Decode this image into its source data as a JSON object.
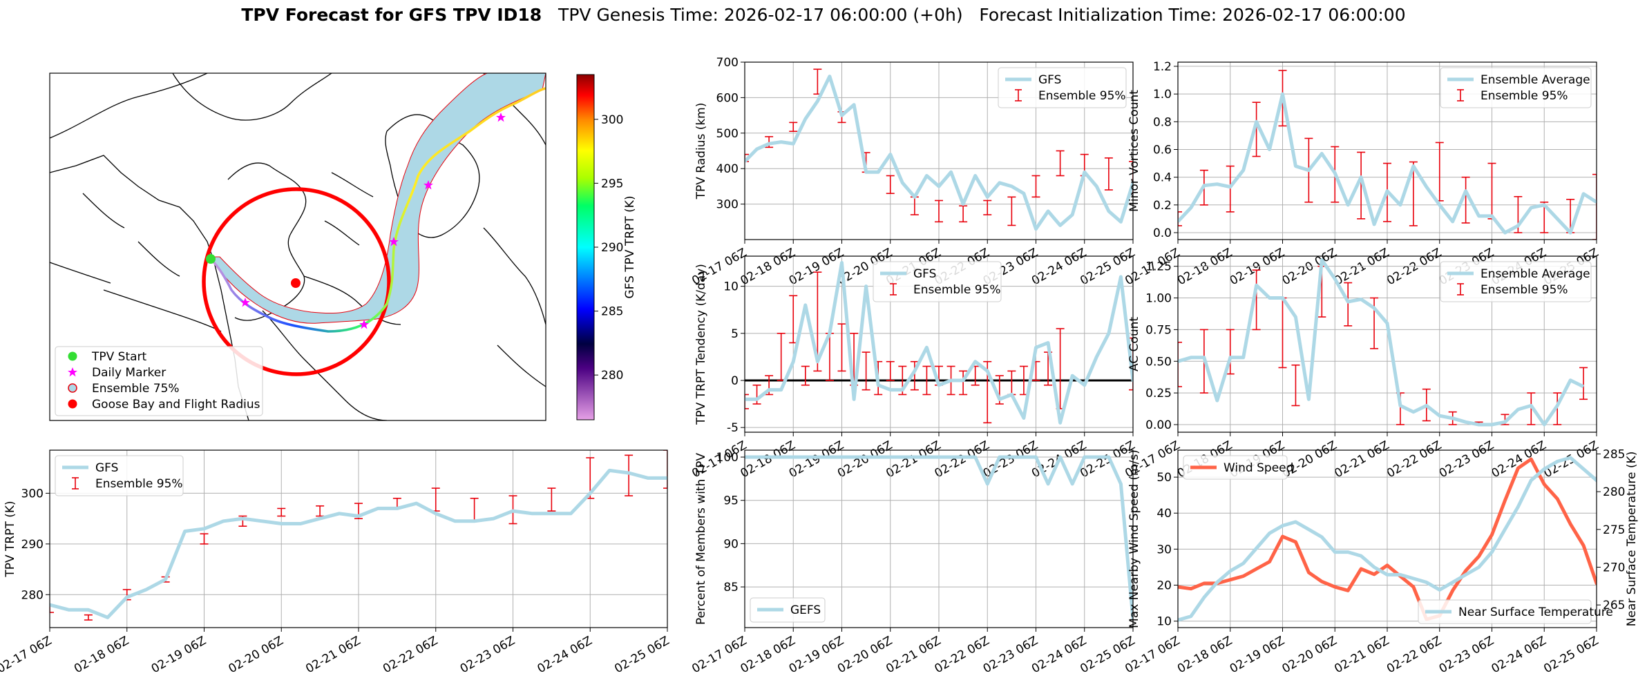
{
  "figure": {
    "title_bold": "TPV Forecast for GFS TPV ID18",
    "title_rest": "   TPV Genesis Time: 2026-02-17 06:00:00 (+0h)   Forecast Initialization Time: 2026-02-17 06:00:00"
  },
  "colors": {
    "line": "#add8e6",
    "err": "#e8000b",
    "wind": "#ff6347",
    "temp_axis": "#4169e1",
    "ensemble_fill": "#add8e6",
    "ensemble_edge": "#e8000b",
    "ring": "#ff0000"
  },
  "map": {
    "colorbar_label": "GFS TPV TRPT (K)",
    "colorbar_ticks": [
      "280",
      "285",
      "290",
      "295",
      "300"
    ],
    "colorbar_range": [
      276.5,
      303.5
    ],
    "legend": [
      "TPV Start",
      "Daily Marker",
      "Ensemble 75%",
      "Goose Bay and Flight Radius"
    ]
  },
  "chart_data": [
    {
      "id": "radius",
      "type": "line",
      "title": "",
      "xlabel": "",
      "ylabel": "TPV Radius (km)",
      "x_ticks": [
        "02-17 06Z",
        "02-18 06Z",
        "02-19 06Z",
        "02-20 06Z",
        "02-21 06Z",
        "02-22 06Z",
        "02-23 06Z",
        "02-24 06Z",
        "02-25 06Z"
      ],
      "xlim": [
        0,
        32
      ],
      "ylim": [
        200,
        700
      ],
      "y_ticks": [
        300,
        400,
        500,
        600,
        700
      ],
      "legend": [
        "GFS",
        "Ensemble 95%"
      ],
      "legend_loc": "upper right",
      "series": [
        {
          "name": "GFS",
          "values": [
            420,
            455,
            470,
            475,
            470,
            540,
            590,
            660,
            550,
            580,
            390,
            390,
            440,
            360,
            320,
            380,
            350,
            390,
            300,
            380,
            320,
            360,
            350,
            330,
            230,
            280,
            240,
            270,
            390,
            350,
            280,
            250,
            360,
            350
          ]
        }
      ],
      "errorbars": [
        [
          0,
          420,
          440
        ],
        [
          2,
          460,
          490
        ],
        [
          4,
          505,
          530
        ],
        [
          6,
          610,
          680
        ],
        [
          8,
          530,
          560
        ],
        [
          10,
          390,
          445
        ],
        [
          12,
          330,
          380
        ],
        [
          14,
          270,
          320
        ],
        [
          16,
          250,
          310
        ],
        [
          18,
          250,
          295
        ],
        [
          20,
          270,
          310
        ],
        [
          22,
          240,
          320
        ],
        [
          24,
          320,
          380
        ],
        [
          26,
          380,
          450
        ],
        [
          28,
          380,
          440
        ],
        [
          30,
          340,
          430
        ],
        [
          32,
          330,
          420
        ],
        [
          34,
          340,
          410
        ]
      ]
    },
    {
      "id": "minor",
      "type": "line",
      "ylabel": "Minor Vortices Count",
      "x_ticks": [
        "02-17 06Z",
        "02-18 06Z",
        "02-19 06Z",
        "02-20 06Z",
        "02-21 06Z",
        "02-22 06Z",
        "02-23 06Z",
        "02-24 06Z",
        "02-25 06Z"
      ],
      "xlim": [
        0,
        32
      ],
      "ylim": [
        -0.05,
        1.23
      ],
      "y_ticks": [
        0.0,
        0.2,
        0.4,
        0.6,
        0.8,
        1.0,
        1.2
      ],
      "legend": [
        "Ensemble Average",
        "Ensemble 95%"
      ],
      "legend_loc": "upper right",
      "series": [
        {
          "name": "Ensemble Average",
          "values": [
            0.08,
            0.18,
            0.34,
            0.35,
            0.33,
            0.45,
            0.8,
            0.6,
            1.0,
            0.48,
            0.45,
            0.57,
            0.43,
            0.2,
            0.4,
            0.06,
            0.3,
            0.2,
            0.48,
            0.33,
            0.2,
            0.08,
            0.3,
            0.12,
            0.12,
            0.0,
            0.05,
            0.18,
            0.2,
            0.1,
            0.0,
            0.28,
            0.22
          ]
        }
      ],
      "errorbars": [
        [
          0,
          0.05,
          0.15
        ],
        [
          2,
          0.2,
          0.45
        ],
        [
          4,
          0.15,
          0.48
        ],
        [
          6,
          0.55,
          0.94
        ],
        [
          8,
          0.77,
          1.17
        ],
        [
          10,
          0.22,
          0.68
        ],
        [
          12,
          0.22,
          0.62
        ],
        [
          14,
          0.1,
          0.58
        ],
        [
          16,
          0.08,
          0.5
        ],
        [
          18,
          0.05,
          0.51
        ],
        [
          20,
          0.23,
          0.65
        ],
        [
          22,
          0.07,
          0.4
        ],
        [
          24,
          0.1,
          0.5
        ],
        [
          26,
          0.0,
          0.26
        ],
        [
          28,
          0.0,
          0.22
        ],
        [
          30,
          0.0,
          0.24
        ],
        [
          32,
          -0.05,
          0.42
        ]
      ]
    },
    {
      "id": "tendency",
      "type": "line",
      "ylabel": "TPV TRPT Tendency (K/day)",
      "x_ticks": [
        "02-17 06Z",
        "02-18 06Z",
        "02-19 06Z",
        "02-20 06Z",
        "02-21 06Z",
        "02-22 06Z",
        "02-23 06Z",
        "02-24 06Z",
        "02-25 06Z"
      ],
      "xlim": [
        0,
        32
      ],
      "ylim": [
        -5.5,
        13.2
      ],
      "y_ticks": [
        -5,
        0,
        5,
        10
      ],
      "legend": [
        "GFS",
        "Ensemble 95%"
      ],
      "legend_loc": "upper center",
      "zero_line": true,
      "series": [
        {
          "name": "GFS",
          "values": [
            -2,
            -2,
            -1,
            -1,
            2,
            8,
            2,
            5,
            12.5,
            -2,
            10,
            -0.5,
            -1,
            -1,
            1,
            3.5,
            -0.5,
            0,
            0,
            2,
            1,
            -2,
            -1.5,
            -4,
            3.5,
            4,
            -4.5,
            0.5,
            -0.5,
            2.5,
            5,
            11,
            0,
            -0.5,
            -1
          ]
        }
      ],
      "errorbars": [
        [
          0,
          -3,
          -1.5
        ],
        [
          1,
          -2.5,
          -0.5
        ],
        [
          2,
          -1.5,
          0.5
        ],
        [
          3,
          0,
          5
        ],
        [
          4,
          4,
          9
        ],
        [
          5,
          -0.5,
          1.5
        ],
        [
          6,
          1,
          11.5
        ],
        [
          7,
          0,
          5
        ],
        [
          8,
          1,
          6
        ],
        [
          9,
          -0.5,
          5
        ],
        [
          10,
          -1,
          3
        ],
        [
          11,
          -1.5,
          2
        ],
        [
          12,
          0,
          2
        ],
        [
          13,
          -1.5,
          1.5
        ],
        [
          14,
          -1,
          2
        ],
        [
          15,
          -1.5,
          1.5
        ],
        [
          16,
          -0.5,
          1.5
        ],
        [
          17,
          -1.5,
          1.5
        ],
        [
          18,
          -1.5,
          1
        ],
        [
          19,
          -0.5,
          1.5
        ],
        [
          20,
          -4.5,
          2
        ],
        [
          21,
          -2.5,
          0.5
        ],
        [
          22,
          -1.5,
          1
        ],
        [
          23,
          -1.5,
          1.5
        ],
        [
          24,
          0,
          2
        ],
        [
          25,
          -0.5,
          3
        ],
        [
          26,
          -3,
          5.5
        ],
        [
          32,
          -1,
          4.5
        ]
      ]
    },
    {
      "id": "ac",
      "type": "line",
      "ylabel": "AC Count",
      "x_ticks": [
        "02-17 06Z",
        "02-18 06Z",
        "02-19 06Z",
        "02-20 06Z",
        "02-21 06Z",
        "02-22 06Z",
        "02-23 06Z",
        "02-24 06Z",
        "02-25 06Z"
      ],
      "xlim": [
        0,
        32
      ],
      "ylim": [
        -0.06,
        1.33
      ],
      "y_ticks": [
        0.0,
        0.25,
        0.5,
        0.75,
        1.0,
        1.25
      ],
      "legend": [
        "Ensemble Average",
        "Ensemble 95%"
      ],
      "legend_loc": "upper right",
      "series": [
        {
          "name": "Ensemble Average",
          "values": [
            0.5,
            0.53,
            0.53,
            0.19,
            0.53,
            0.53,
            1.1,
            1.0,
            1.0,
            0.85,
            0.2,
            1.3,
            1.15,
            0.97,
            0.99,
            0.92,
            0.8,
            0.15,
            0.1,
            0.15,
            0.07,
            0.05,
            0.02,
            0.0,
            0.0,
            0.02,
            0.12,
            0.15,
            0.0,
            0.15,
            0.35,
            0.3
          ]
        }
      ],
      "errorbars": [
        [
          0,
          0.3,
          0.65
        ],
        [
          2,
          0.25,
          0.75
        ],
        [
          4,
          0.4,
          0.75
        ],
        [
          6,
          0.75,
          1.22
        ],
        [
          8,
          0.45,
          1.0
        ],
        [
          9,
          0.15,
          0.47
        ],
        [
          11,
          0.85,
          1.25
        ],
        [
          13,
          0.78,
          1.12
        ],
        [
          15,
          0.6,
          1.0
        ],
        [
          17,
          0.0,
          0.25
        ],
        [
          19,
          0.03,
          0.28
        ],
        [
          21,
          0.0,
          0.1
        ],
        [
          23,
          0.0,
          0.02
        ],
        [
          25,
          0.0,
          0.08
        ],
        [
          27,
          0.0,
          0.25
        ],
        [
          29,
          0.0,
          0.25
        ],
        [
          31,
          0.2,
          0.45
        ]
      ]
    },
    {
      "id": "trpt",
      "type": "line",
      "ylabel": "TPV TRPT (K)",
      "x_ticks": [
        "02-17 06Z",
        "02-18 06Z",
        "02-19 06Z",
        "02-20 06Z",
        "02-21 06Z",
        "02-22 06Z",
        "02-23 06Z",
        "02-24 06Z",
        "02-25 06Z"
      ],
      "xlim": [
        0,
        32
      ],
      "ylim": [
        273.5,
        308.5
      ],
      "y_ticks": [
        280,
        290,
        300
      ],
      "legend": [
        "GFS",
        "Ensemble 95%"
      ],
      "legend_loc": "upper left",
      "series": [
        {
          "name": "GFS",
          "values": [
            278,
            277,
            277,
            275.5,
            279.5,
            281,
            283,
            292.5,
            293,
            294.5,
            295,
            294.5,
            294,
            294,
            295,
            296,
            295.5,
            297,
            297,
            298,
            296,
            294.5,
            294.5,
            295,
            296.5,
            296,
            296,
            296,
            300,
            304.5,
            304,
            303,
            303
          ]
        }
      ],
      "errorbars": [
        [
          0,
          276.5,
          278
        ],
        [
          2,
          275,
          276
        ],
        [
          4,
          279,
          281
        ],
        [
          6,
          282.5,
          283.5
        ],
        [
          8,
          290,
          292
        ],
        [
          10,
          293.5,
          295.5
        ],
        [
          12,
          295.5,
          297
        ],
        [
          14,
          295.5,
          297.5
        ],
        [
          16,
          295,
          298
        ],
        [
          18,
          297,
          299
        ],
        [
          20,
          296.5,
          301
        ],
        [
          22,
          294.5,
          299
        ],
        [
          24,
          294,
          299.5
        ],
        [
          26,
          296.5,
          301
        ],
        [
          28,
          299,
          307
        ],
        [
          30,
          299.5,
          307.5
        ],
        [
          32,
          301,
          308.5
        ]
      ]
    },
    {
      "id": "percent",
      "type": "line",
      "ylabel": "Percent of Members with TPV",
      "x_ticks": [
        "02-17 06Z",
        "02-18 06Z",
        "02-19 06Z",
        "02-20 06Z",
        "02-21 06Z",
        "02-22 06Z",
        "02-23 06Z",
        "02-24 06Z",
        "02-25 06Z"
      ],
      "xlim": [
        0,
        32
      ],
      "ylim": [
        80.3,
        100.8
      ],
      "y_ticks": [
        85,
        90,
        95,
        100
      ],
      "legend": [
        "GEFS"
      ],
      "legend_loc": "lower left",
      "series": [
        {
          "name": "GEFS",
          "values": [
            100,
            100,
            100,
            100,
            100,
            100,
            100,
            100,
            100,
            100,
            100,
            100,
            100,
            100,
            100,
            100,
            100,
            100,
            100,
            100,
            96.9,
            100,
            100,
            100,
            100,
            96.9,
            100,
            96.9,
            100,
            100,
            100,
            96.9,
            81.3,
            100,
            100
          ]
        }
      ]
    },
    {
      "id": "wind_temp",
      "type": "line",
      "ylabel": "Max Nearby Wind Speed (m/s)",
      "y2label": "Near Surface Temperature (K)",
      "x_ticks": [
        "02-17 06Z",
        "02-18 06Z",
        "02-19 06Z",
        "02-20 06Z",
        "02-21 06Z",
        "02-22 06Z",
        "02-23 06Z",
        "02-24 06Z",
        "02-25 06Z"
      ],
      "xlim": [
        0,
        32
      ],
      "ylim": [
        8.2,
        57.5
      ],
      "y_ticks": [
        10,
        20,
        30,
        40,
        50
      ],
      "y2lim": [
        262,
        285.5
      ],
      "y2_ticks": [
        265,
        270,
        275,
        280,
        285
      ],
      "legend": [
        "Wind Speed",
        "Near Surface Temperature"
      ],
      "series": [
        {
          "name": "Wind Speed",
          "axis": "left",
          "values": [
            19.5,
            19,
            20.5,
            20.5,
            21.5,
            22.5,
            24.5,
            26.5,
            33.5,
            32,
            23.5,
            21,
            19.5,
            18.5,
            24.5,
            23,
            25.5,
            22.5,
            19.5,
            10.5,
            11.5,
            18.5,
            24,
            28,
            34,
            43.5,
            52.5,
            55,
            48,
            44,
            37,
            31,
            20.5,
            22.5
          ]
        },
        {
          "name": "Near Surface Temperature",
          "axis": "right",
          "values": [
            263,
            263.5,
            266,
            268,
            269.5,
            270.5,
            272.5,
            274.5,
            275.5,
            276,
            275,
            274,
            272,
            272,
            271.5,
            270,
            269,
            269,
            268.5,
            268,
            267,
            268,
            269,
            270,
            272,
            275,
            278,
            281.5,
            283,
            284,
            284.5,
            283,
            281.5,
            280
          ]
        }
      ]
    }
  ]
}
